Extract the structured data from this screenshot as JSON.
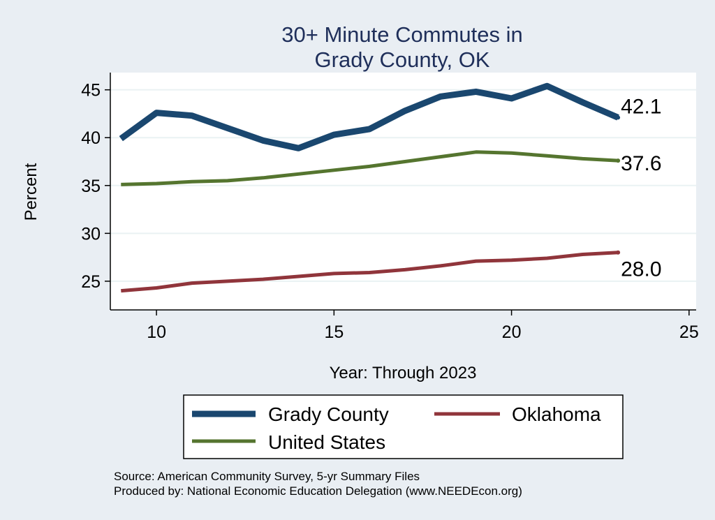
{
  "chart_data": {
    "type": "line",
    "title": [
      "30+ Minute Commutes in",
      "Grady County, OK"
    ],
    "xlabel": "Year: Through 2023",
    "ylabel": "Percent",
    "xlim": [
      8.7,
      25.2
    ],
    "ylim": [
      22,
      46.8
    ],
    "xticks": [
      10,
      15,
      20,
      25
    ],
    "yticks": [
      25,
      30,
      35,
      40,
      45
    ],
    "grid": true,
    "series": [
      {
        "name": "Grady County",
        "color": "#1a476f",
        "x": [
          9,
          10,
          11,
          12,
          13,
          14,
          15,
          16,
          17,
          18,
          19,
          20,
          21,
          22,
          23
        ],
        "values": [
          39.9,
          42.6,
          42.3,
          41.0,
          39.7,
          38.9,
          40.3,
          40.9,
          42.8,
          44.3,
          44.8,
          44.1,
          45.4,
          43.7,
          42.1
        ],
        "end_label": "42.1",
        "legend_width": "thick"
      },
      {
        "name": "United States",
        "color": "#55752f",
        "x": [
          9,
          10,
          11,
          12,
          13,
          14,
          15,
          16,
          17,
          18,
          19,
          20,
          21,
          22,
          23
        ],
        "values": [
          35.1,
          35.2,
          35.4,
          35.5,
          35.8,
          36.2,
          36.6,
          37.0,
          37.5,
          38.0,
          38.5,
          38.4,
          38.1,
          37.8,
          37.6
        ],
        "end_label": "37.6",
        "legend_width": "thin"
      },
      {
        "name": "Oklahoma",
        "color": "#90353b",
        "x": [
          9,
          10,
          11,
          12,
          13,
          14,
          15,
          16,
          17,
          18,
          19,
          20,
          21,
          22,
          23
        ],
        "values": [
          24.0,
          24.3,
          24.8,
          25.0,
          25.2,
          25.5,
          25.8,
          25.9,
          26.2,
          26.6,
          27.1,
          27.2,
          27.4,
          27.8,
          28.0
        ],
        "end_label": "28.0",
        "legend_width": "medium"
      }
    ],
    "legend": {
      "position": "bottom",
      "order": [
        "Grady County",
        "Oklahoma",
        "United States"
      ]
    },
    "notes": [
      "Source: American Community Survey, 5-yr Summary Files",
      "Produced by: National Economic Education Delegation (www.NEEDEcon.org)"
    ]
  }
}
